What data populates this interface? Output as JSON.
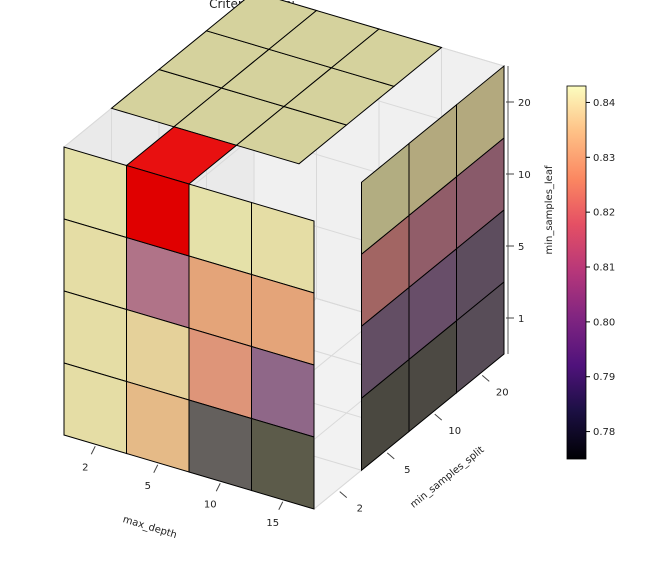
{
  "chart_data": {
    "type": "voxel-3d",
    "title": "Criterion - gini",
    "xlabel": "max_depth",
    "ylabel": "min_samples_split",
    "zlabel": "min_samples_leaf",
    "x_ticks": [
      "2",
      "5",
      "10",
      "15"
    ],
    "y_ticks": [
      "2",
      "5",
      "10",
      "20"
    ],
    "z_ticks": [
      "1",
      "5",
      "10",
      "20"
    ],
    "colorbar": {
      "colormap": "magma",
      "min": 0.775,
      "max": 0.843,
      "ticks": [
        "0.78",
        "0.79",
        "0.80",
        "0.81",
        "0.82",
        "0.83",
        "0.84"
      ]
    },
    "highlight": {
      "max_depth": "5",
      "min_samples_split": "2",
      "min_samples_leaf": "20",
      "color": "#e00000"
    },
    "visible_scores_front_face": [
      {
        "max_depth": "2",
        "min_samples_split": "2",
        "min_samples_leaf": "20",
        "score": 0.842
      },
      {
        "max_depth": "5",
        "min_samples_split": "2",
        "min_samples_leaf": "20",
        "score": 0.843
      },
      {
        "max_depth": "10",
        "min_samples_split": "2",
        "min_samples_leaf": "20",
        "score": 0.842
      },
      {
        "max_depth": "15",
        "min_samples_split": "2",
        "min_samples_leaf": "20",
        "score": 0.841
      },
      {
        "max_depth": "2",
        "min_samples_split": "2",
        "min_samples_leaf": "10",
        "score": 0.841
      },
      {
        "max_depth": "5",
        "min_samples_split": "2",
        "min_samples_leaf": "10",
        "score": 0.805
      },
      {
        "max_depth": "10",
        "min_samples_split": "2",
        "min_samples_leaf": "10",
        "score": 0.826
      },
      {
        "max_depth": "15",
        "min_samples_split": "2",
        "min_samples_leaf": "10",
        "score": 0.826
      },
      {
        "max_depth": "2",
        "min_samples_split": "2",
        "min_samples_leaf": "5",
        "score": 0.841
      },
      {
        "max_depth": "5",
        "min_samples_split": "2",
        "min_samples_leaf": "5",
        "score": 0.838
      },
      {
        "max_depth": "10",
        "min_samples_split": "2",
        "min_samples_leaf": "5",
        "score": 0.822
      },
      {
        "max_depth": "15",
        "min_samples_split": "2",
        "min_samples_leaf": "5",
        "score": 0.795
      },
      {
        "max_depth": "2",
        "min_samples_split": "2",
        "min_samples_leaf": "1",
        "score": 0.841
      },
      {
        "max_depth": "5",
        "min_samples_split": "2",
        "min_samples_leaf": "1",
        "score": 0.832
      },
      {
        "max_depth": "10",
        "min_samples_split": "2",
        "min_samples_leaf": "1",
        "score": 0.781
      },
      {
        "max_depth": "15",
        "min_samples_split": "2",
        "min_samples_leaf": "1",
        "score": 0.776
      }
    ],
    "visible_scores_right_face": [
      {
        "max_depth": "15",
        "min_samples_split": "5",
        "min_samples_leaf": "20",
        "score": 0.841
      },
      {
        "max_depth": "15",
        "min_samples_split": "10",
        "min_samples_leaf": "20",
        "score": 0.84
      },
      {
        "max_depth": "15",
        "min_samples_split": "20",
        "min_samples_leaf": "20",
        "score": 0.84
      },
      {
        "max_depth": "15",
        "min_samples_split": "5",
        "min_samples_leaf": "10",
        "score": 0.815
      },
      {
        "max_depth": "15",
        "min_samples_split": "10",
        "min_samples_leaf": "10",
        "score": 0.808
      },
      {
        "max_depth": "15",
        "min_samples_split": "20",
        "min_samples_leaf": "10",
        "score": 0.805
      },
      {
        "max_depth": "15",
        "min_samples_split": "5",
        "min_samples_leaf": "5",
        "score": 0.79
      },
      {
        "max_depth": "15",
        "min_samples_split": "10",
        "min_samples_leaf": "5",
        "score": 0.792
      },
      {
        "max_depth": "15",
        "min_samples_split": "20",
        "min_samples_leaf": "5",
        "score": 0.788
      },
      {
        "max_depth": "15",
        "min_samples_split": "5",
        "min_samples_leaf": "1",
        "score": 0.778
      },
      {
        "max_depth": "15",
        "min_samples_split": "10",
        "min_samples_leaf": "1",
        "score": 0.779
      },
      {
        "max_depth": "15",
        "min_samples_split": "20",
        "min_samples_leaf": "1",
        "score": 0.786
      }
    ],
    "visible_scores_top_face": [
      {
        "max_depth": "2",
        "min_samples_split": "5",
        "min_samples_leaf": "20",
        "score": 0.842
      },
      {
        "max_depth": "5",
        "min_samples_split": "5",
        "min_samples_leaf": "20",
        "score": 0.842
      },
      {
        "max_depth": "10",
        "min_samples_split": "5",
        "min_samples_leaf": "20",
        "score": 0.842
      },
      {
        "max_depth": "2",
        "min_samples_split": "10",
        "min_samples_leaf": "20",
        "score": 0.842
      },
      {
        "max_depth": "5",
        "min_samples_split": "10",
        "min_samples_leaf": "20",
        "score": 0.842
      },
      {
        "max_depth": "10",
        "min_samples_split": "10",
        "min_samples_leaf": "20",
        "score": 0.842
      },
      {
        "max_depth": "2",
        "min_samples_split": "20",
        "min_samples_leaf": "20",
        "score": 0.842
      },
      {
        "max_depth": "5",
        "min_samples_split": "20",
        "min_samples_leaf": "20",
        "score": 0.842
      },
      {
        "max_depth": "10",
        "min_samples_split": "20",
        "min_samples_leaf": "20",
        "score": 0.842
      }
    ]
  }
}
